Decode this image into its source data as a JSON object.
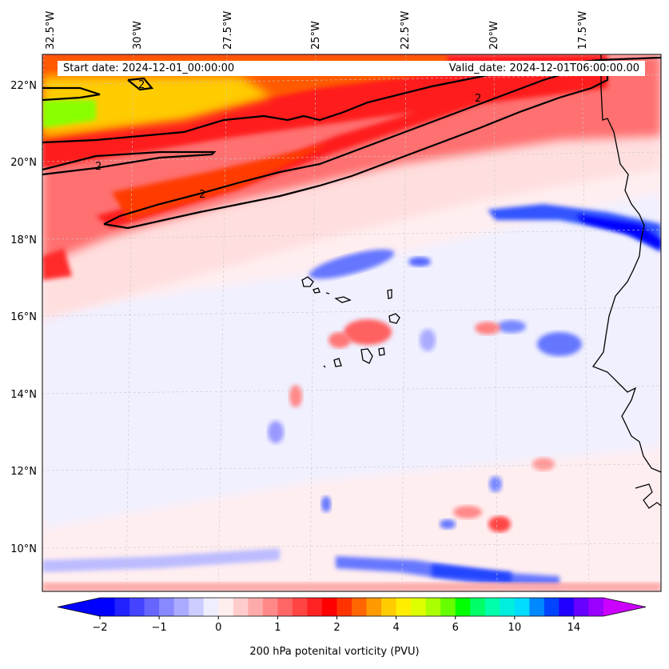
{
  "header": {
    "start_date": "Start date: 2024-12-01_00:00:00",
    "valid_date": "Valid_date: 2024-12-01T06:00:00.00"
  },
  "map": {
    "variable_title": "200 hPa potenital vorticity (PVU)",
    "lon_labels": [
      "32.5°W",
      "30°W",
      "27.5°W",
      "25°W",
      "22.5°W",
      "20°W",
      "17.5°W"
    ],
    "lat_labels": [
      "22°N",
      "20°N",
      "18°N",
      "16°N",
      "14°N",
      "12°N",
      "10°N"
    ],
    "extent": {
      "lon_min": -32.6,
      "lon_max": -15.2,
      "lat_min": 8.9,
      "lat_max": 22.8
    },
    "contour_level_label": "2",
    "grid": "on",
    "coastline_color": "#000000"
  },
  "colorbar": {
    "tick_labels": [
      "−2",
      "−1",
      "0",
      "1",
      "2",
      "4",
      "6",
      "10",
      "14"
    ],
    "tick_values": [
      -2,
      -1,
      0,
      1,
      2,
      4,
      6,
      10,
      14
    ],
    "colors": [
      "#0000ff",
      "#2222ff",
      "#4444ff",
      "#6666ff",
      "#8888ff",
      "#aaaaff",
      "#ccccff",
      "#eeeeff",
      "#ffeeee",
      "#ffcccc",
      "#ffaaaa",
      "#ff8888",
      "#ff6666",
      "#ff4444",
      "#ff2222",
      "#ff0000",
      "#ff3300",
      "#ff6600",
      "#ff9900",
      "#ffcc00",
      "#ffee00",
      "#ddff00",
      "#aaff00",
      "#66ff00",
      "#00ff00",
      "#00ff66",
      "#00ffaa",
      "#00eedd",
      "#00ddff",
      "#0088ff",
      "#0044ff",
      "#2200ff",
      "#6600ff",
      "#9900ff"
    ],
    "under_color": "#0000ff",
    "over_color": "#cc00ff"
  }
}
